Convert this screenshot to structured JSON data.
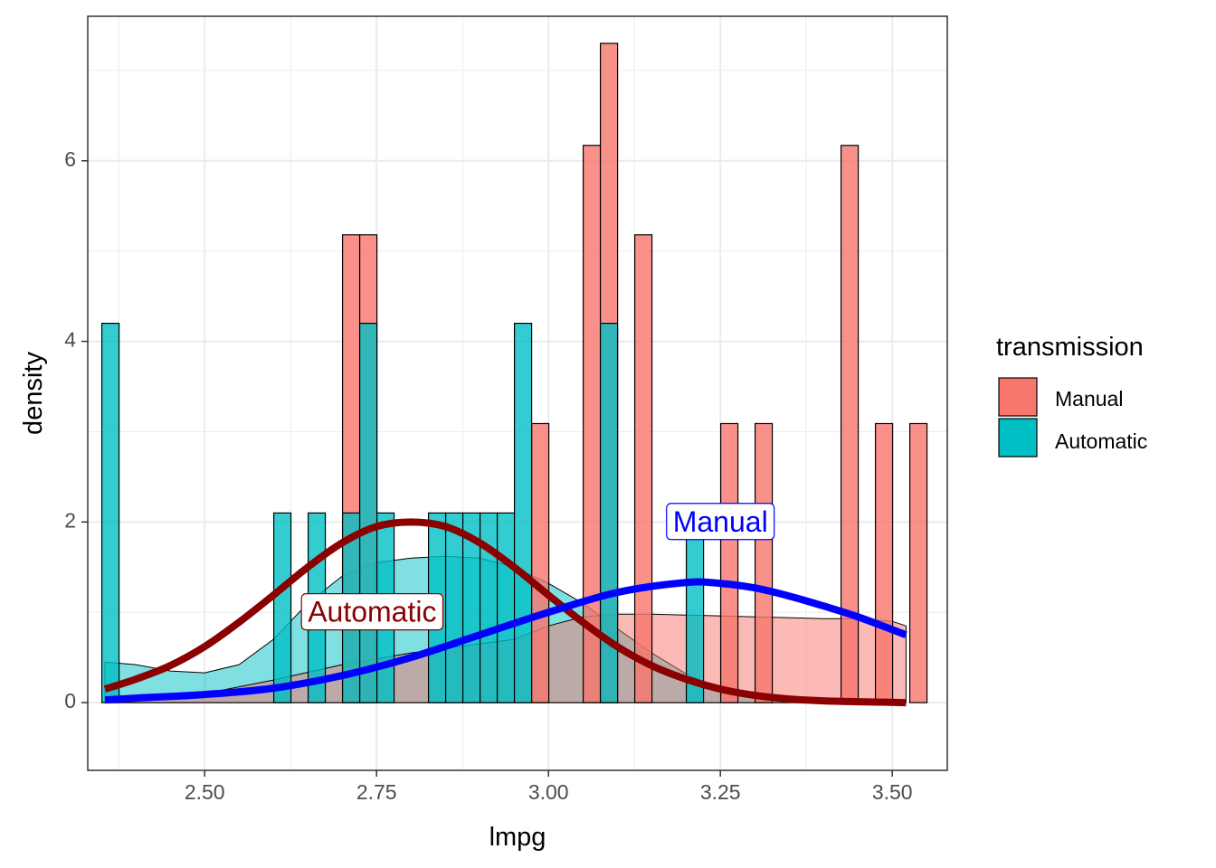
{
  "chart_data": {
    "type": "histogram-density",
    "title": "",
    "xlabel": "lmpg",
    "ylabel": "density",
    "xlim": [
      2.33,
      3.58
    ],
    "ylim": [
      -0.75,
      7.6
    ],
    "x_ticks": [
      2.5,
      2.75,
      3.0,
      3.25,
      3.5
    ],
    "x_tick_labels": [
      "2.50",
      "2.75",
      "3.00",
      "3.25",
      "3.50"
    ],
    "y_ticks": [
      0,
      2,
      4,
      6
    ],
    "y_tick_labels": [
      "0",
      "2",
      "4",
      "6"
    ],
    "grid": true,
    "bin_width": 0.025,
    "legend": {
      "title": "transmission",
      "position": "right",
      "items": [
        {
          "label": "Manual",
          "color": "#F8766D"
        },
        {
          "label": "Automatic",
          "color": "#00BFC4"
        }
      ]
    },
    "series": [
      {
        "name": "Manual",
        "color": "#F8766D",
        "histogram": [
          {
            "x": 2.713,
            "density": 5.18
          },
          {
            "x": 2.738,
            "density": 5.18
          },
          {
            "x": 2.988,
            "density": 3.09
          },
          {
            "x": 3.063,
            "density": 6.17
          },
          {
            "x": 3.088,
            "density": 7.3
          },
          {
            "x": 3.138,
            "density": 5.18
          },
          {
            "x": 3.263,
            "density": 3.09
          },
          {
            "x": 3.313,
            "density": 3.09
          },
          {
            "x": 3.438,
            "density": 6.17
          },
          {
            "x": 3.488,
            "density": 3.09
          },
          {
            "x": 3.538,
            "density": 3.09
          }
        ],
        "kde": [
          [
            2.355,
            0.0
          ],
          [
            2.4,
            0.03
          ],
          [
            2.5,
            0.1
          ],
          [
            2.6,
            0.25
          ],
          [
            2.7,
            0.42
          ],
          [
            2.8,
            0.55
          ],
          [
            2.9,
            0.65
          ],
          [
            2.95,
            0.7
          ],
          [
            3.0,
            0.85
          ],
          [
            3.05,
            0.95
          ],
          [
            3.1,
            0.98
          ],
          [
            3.15,
            0.98
          ],
          [
            3.2,
            0.97
          ],
          [
            3.3,
            0.95
          ],
          [
            3.4,
            0.93
          ],
          [
            3.45,
            0.93
          ],
          [
            3.5,
            0.9
          ],
          [
            3.52,
            0.85
          ]
        ]
      },
      {
        "name": "Automatic",
        "color": "#00BFC4",
        "histogram": [
          {
            "x": 2.363,
            "density": 4.2
          },
          {
            "x": 2.613,
            "density": 2.1
          },
          {
            "x": 2.663,
            "density": 2.1
          },
          {
            "x": 2.713,
            "density": 2.1
          },
          {
            "x": 2.738,
            "density": 4.2
          },
          {
            "x": 2.763,
            "density": 2.1
          },
          {
            "x": 2.838,
            "density": 2.1
          },
          {
            "x": 2.863,
            "density": 2.1
          },
          {
            "x": 2.888,
            "density": 2.1
          },
          {
            "x": 2.913,
            "density": 2.1
          },
          {
            "x": 2.938,
            "density": 2.1
          },
          {
            "x": 2.963,
            "density": 4.2
          },
          {
            "x": 3.088,
            "density": 4.2
          },
          {
            "x": 3.213,
            "density": 2.1
          }
        ],
        "kde": [
          [
            2.355,
            0.45
          ],
          [
            2.4,
            0.42
          ],
          [
            2.45,
            0.35
          ],
          [
            2.5,
            0.33
          ],
          [
            2.55,
            0.42
          ],
          [
            2.6,
            0.7
          ],
          [
            2.65,
            1.1
          ],
          [
            2.7,
            1.4
          ],
          [
            2.75,
            1.55
          ],
          [
            2.8,
            1.6
          ],
          [
            2.85,
            1.62
          ],
          [
            2.9,
            1.6
          ],
          [
            2.95,
            1.5
          ],
          [
            3.0,
            1.32
          ],
          [
            3.05,
            1.1
          ],
          [
            3.1,
            0.82
          ],
          [
            3.15,
            0.55
          ],
          [
            3.2,
            0.32
          ],
          [
            3.25,
            0.15
          ],
          [
            3.3,
            0.07
          ],
          [
            3.35,
            0.03
          ],
          [
            3.4,
            0.0
          ]
        ]
      }
    ],
    "normal_curves": [
      {
        "name": "Automatic",
        "color": "#8B0000",
        "points": [
          [
            2.355,
            0.15
          ],
          [
            2.4,
            0.26
          ],
          [
            2.45,
            0.41
          ],
          [
            2.5,
            0.62
          ],
          [
            2.55,
            0.89
          ],
          [
            2.6,
            1.19
          ],
          [
            2.65,
            1.5
          ],
          [
            2.7,
            1.77
          ],
          [
            2.75,
            1.95
          ],
          [
            2.8,
            2.0
          ],
          [
            2.85,
            1.95
          ],
          [
            2.9,
            1.77
          ],
          [
            2.95,
            1.5
          ],
          [
            3.0,
            1.19
          ],
          [
            3.05,
            0.89
          ],
          [
            3.1,
            0.62
          ],
          [
            3.15,
            0.41
          ],
          [
            3.2,
            0.26
          ],
          [
            3.25,
            0.15
          ],
          [
            3.3,
            0.08
          ],
          [
            3.35,
            0.04
          ],
          [
            3.4,
            0.02
          ],
          [
            3.45,
            0.01
          ],
          [
            3.52,
            0.0
          ]
        ]
      },
      {
        "name": "Manual",
        "color": "#0000FF",
        "points": [
          [
            2.355,
            0.03
          ],
          [
            2.4,
            0.05
          ],
          [
            2.5,
            0.09
          ],
          [
            2.6,
            0.16
          ],
          [
            2.7,
            0.3
          ],
          [
            2.8,
            0.5
          ],
          [
            2.9,
            0.75
          ],
          [
            3.0,
            1.0
          ],
          [
            3.1,
            1.22
          ],
          [
            3.2,
            1.33
          ],
          [
            3.25,
            1.32
          ],
          [
            3.3,
            1.27
          ],
          [
            3.35,
            1.18
          ],
          [
            3.4,
            1.07
          ],
          [
            3.45,
            0.95
          ],
          [
            3.52,
            0.75
          ]
        ]
      }
    ],
    "annotations": [
      {
        "text": "Automatic",
        "x": 2.65,
        "y": 0.98,
        "color": "#8B0000",
        "anchor": "start"
      },
      {
        "text": "Manual",
        "x": 3.25,
        "y": 1.98,
        "color": "#0000FF",
        "anchor": "middle"
      }
    ]
  }
}
